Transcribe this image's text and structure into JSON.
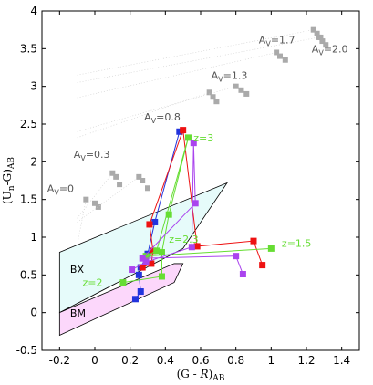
{
  "chart_data": {
    "type": "scatter",
    "xlabel": "(G - R)AB",
    "ylabel": "(Un-G)AB",
    "xlim": [
      -0.3,
      1.5
    ],
    "ylim": [
      -0.5,
      4.0
    ],
    "xticks": [
      "-0.2",
      "0",
      "0.2",
      "0.4",
      "0.6",
      "0.8",
      "1",
      "1.2",
      "1.4"
    ],
    "yticks": [
      "-0.5",
      "0",
      "0.5",
      "1",
      "1.5",
      "2",
      "2.5",
      "3",
      "3.5",
      "4"
    ],
    "regions": [
      {
        "name": "BX",
        "color": "#e6fbfa",
        "polygon": [
          [
            -0.2,
            0.8
          ],
          [
            0.75,
            1.72
          ],
          [
            0.5,
            0.85
          ],
          [
            -0.2,
            0.0
          ]
        ]
      },
      {
        "name": "BM",
        "color": "#fcd7fb",
        "polygon": [
          [
            -0.2,
            0.0
          ],
          [
            0.45,
            0.65
          ],
          [
            0.5,
            0.65
          ],
          [
            0.45,
            0.4
          ],
          [
            -0.2,
            -0.3
          ]
        ]
      }
    ],
    "series": [
      {
        "color": "#2233dd",
        "points": [
          [
            0.23,
            0.18
          ],
          [
            0.26,
            0.28
          ],
          [
            0.25,
            0.5
          ],
          [
            0.26,
            0.6
          ],
          [
            0.3,
            0.78
          ],
          [
            0.34,
            1.2
          ],
          [
            0.48,
            2.4
          ]
        ]
      },
      {
        "color": "#ee1111",
        "points": [
          [
            0.27,
            0.6
          ],
          [
            0.32,
            0.65
          ],
          [
            0.33,
            0.82
          ],
          [
            0.31,
            1.17
          ],
          [
            0.5,
            2.42
          ],
          [
            0.58,
            0.88
          ],
          [
            0.9,
            0.95
          ],
          [
            0.95,
            0.63
          ]
        ]
      },
      {
        "color": "#66dd33",
        "points": [
          [
            0.16,
            0.4
          ],
          [
            0.38,
            0.48
          ],
          [
            0.38,
            0.8
          ],
          [
            0.42,
            1.3
          ],
          [
            0.53,
            2.32
          ],
          [
            0.35,
            0.82
          ],
          [
            0.29,
            0.75
          ],
          [
            1.0,
            0.85
          ]
        ]
      },
      {
        "color": "#aa44ee",
        "points": [
          [
            0.21,
            0.57
          ],
          [
            0.29,
            0.67
          ],
          [
            0.55,
            0.87
          ],
          [
            0.56,
            2.25
          ],
          [
            0.57,
            1.45
          ],
          [
            0.27,
            0.72
          ],
          [
            0.8,
            0.75
          ],
          [
            0.84,
            0.51
          ]
        ]
      }
    ],
    "av_tracks": [
      {
        "points": [
          [
            -0.05,
            1.5
          ],
          [
            0.0,
            1.45
          ],
          [
            0.02,
            1.4
          ]
        ]
      },
      {
        "points": [
          [
            0.1,
            1.85
          ],
          [
            0.12,
            1.8
          ],
          [
            0.14,
            1.7
          ]
        ]
      },
      {
        "points": [
          [
            0.25,
            1.8
          ],
          [
            0.27,
            1.75
          ],
          [
            0.3,
            1.65
          ]
        ]
      },
      {
        "points": [
          [
            0.65,
            2.92
          ],
          [
            0.67,
            2.86
          ],
          [
            0.69,
            2.8
          ]
        ]
      },
      {
        "points": [
          [
            0.8,
            3.0
          ],
          [
            0.83,
            2.95
          ],
          [
            0.86,
            2.9
          ]
        ]
      },
      {
        "points": [
          [
            1.03,
            3.45
          ],
          [
            1.05,
            3.4
          ],
          [
            1.08,
            3.35
          ]
        ]
      },
      {
        "points": [
          [
            1.24,
            3.75
          ],
          [
            1.26,
            3.7
          ],
          [
            1.28,
            3.65
          ]
        ]
      },
      {
        "points": [
          [
            1.27,
            3.65
          ],
          [
            1.29,
            3.6
          ],
          [
            1.31,
            3.55
          ]
        ]
      }
    ],
    "av_labels": [
      {
        "text": "A_V=0",
        "x": -0.27,
        "y": 1.6,
        "color": "#555555"
      },
      {
        "text": "A_V=0.3",
        "x": -0.12,
        "y": 2.05,
        "color": "#555555"
      },
      {
        "text": "A_V=0.8",
        "x": 0.28,
        "y": 2.55,
        "color": "#2233dd"
      },
      {
        "text": "A_V=1.3",
        "x": 0.66,
        "y": 3.1,
        "color": "#555555"
      },
      {
        "text": "A_V=1.7",
        "x": 0.93,
        "y": 3.57,
        "color": "#555555"
      },
      {
        "text": "A_V=2.0",
        "x": 1.23,
        "y": 3.45,
        "color": "#555555"
      }
    ],
    "z_labels": [
      {
        "text": "z=3",
        "x": 0.56,
        "y": 2.27,
        "color": "#66dd33"
      },
      {
        "text": "z=2.3",
        "x": 0.42,
        "y": 0.93,
        "color": "#66dd33"
      },
      {
        "text": "z=1.5",
        "x": 1.06,
        "y": 0.87,
        "color": "#66dd33"
      },
      {
        "text": "z=2",
        "x": -0.07,
        "y": 0.35,
        "color": "#66dd33"
      }
    ],
    "region_labels": [
      {
        "text": "BX",
        "x": -0.14,
        "y": 0.53
      },
      {
        "text": "BM",
        "x": -0.14,
        "y": -0.05
      }
    ]
  }
}
